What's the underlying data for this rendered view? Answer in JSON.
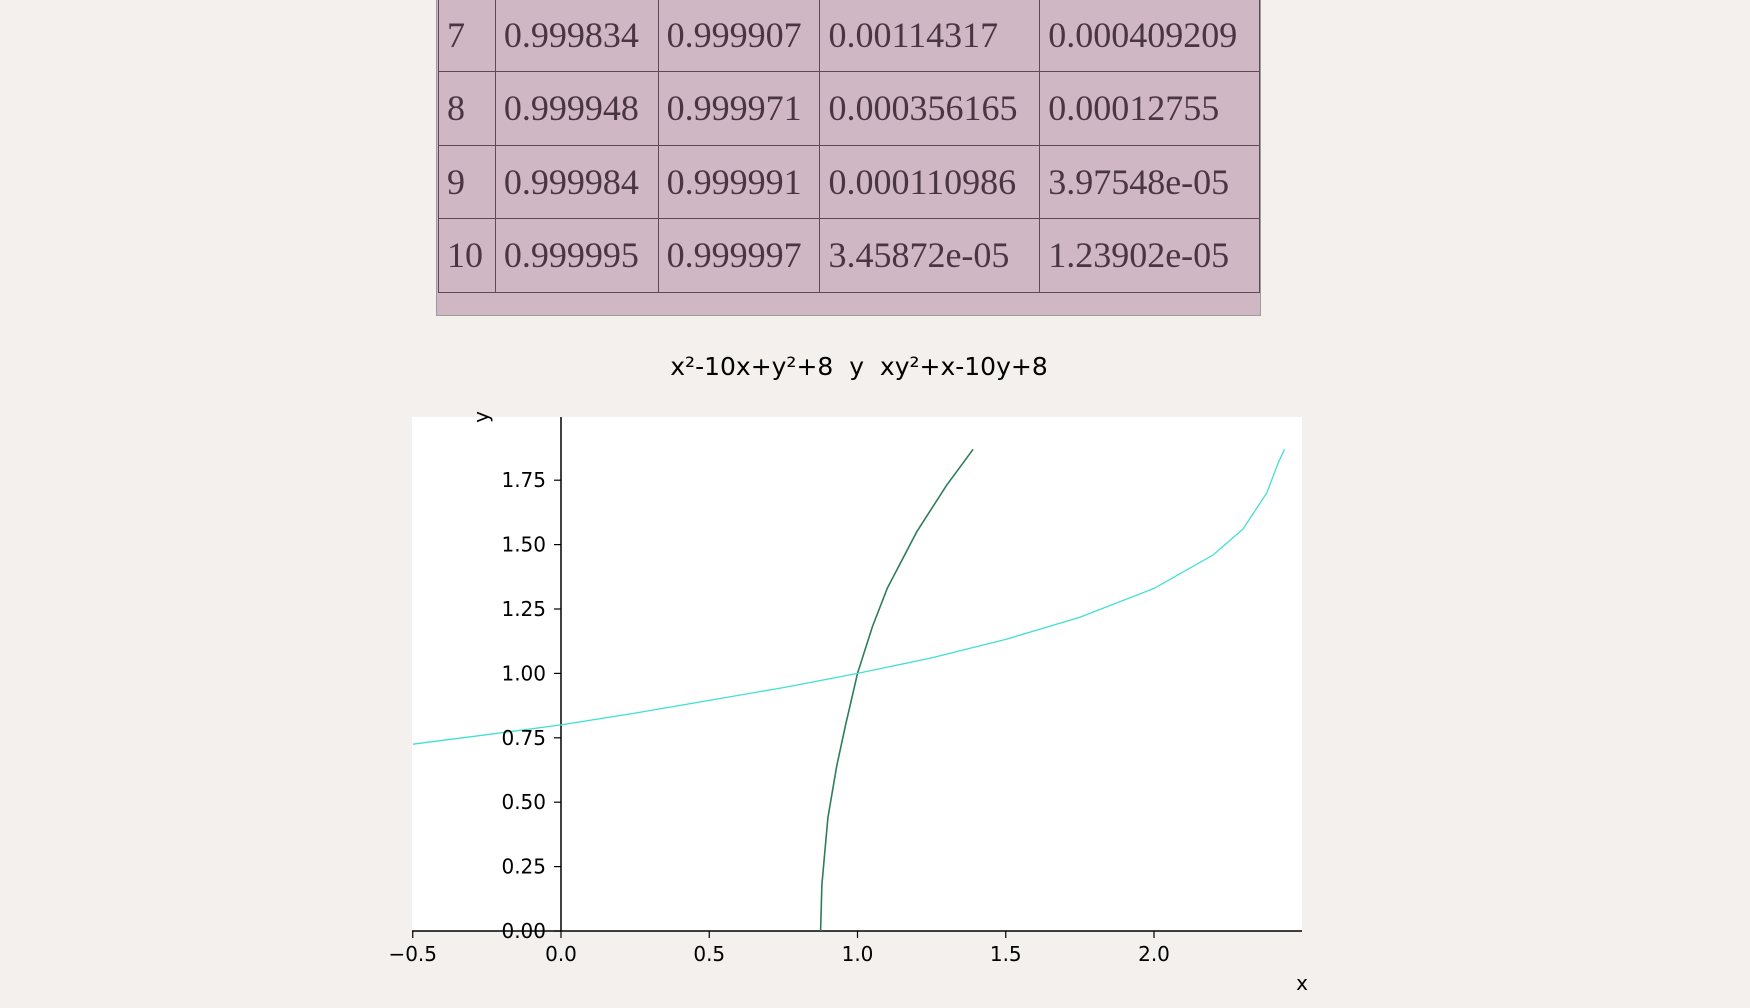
{
  "table": {
    "rows": [
      [
        "7",
        "0.999834",
        "0.999907",
        "0.00114317",
        "0.000409209"
      ],
      [
        "8",
        "0.999948",
        "0.999971",
        "0.000356165",
        "0.00012755"
      ],
      [
        "9",
        "0.999984",
        "0.999991",
        "0.000110986",
        "3.97548e-05"
      ],
      [
        "10",
        "0.999995",
        "0.999997",
        "3.45872e-05",
        "1.23902e-05"
      ]
    ]
  },
  "chart_data": {
    "type": "line",
    "title": "x²-10x+y²+8  y  xy²+x-10y+8",
    "xlabel": "x",
    "ylabel": "y",
    "xlim": [
      -0.5,
      2.5
    ],
    "ylim": [
      0,
      2
    ],
    "x_ticks": [
      "−0.5",
      "0.0",
      "0.5",
      "1.0",
      "1.5",
      "2.0"
    ],
    "y_ticks": [
      "0.00",
      "0.25",
      "0.50",
      "0.75",
      "1.00",
      "1.25",
      "1.50",
      "1.75"
    ],
    "series": [
      {
        "equation": "x²-10x+y²+8 = 0",
        "color": "#2e7d5b",
        "points": [
          [
            0.8754,
            0.0
          ],
          [
            0.88,
            0.18
          ],
          [
            0.9,
            0.44
          ],
          [
            0.93,
            0.64
          ],
          [
            0.96,
            0.8
          ],
          [
            1.0,
            1.0
          ],
          [
            1.05,
            1.18
          ],
          [
            1.1,
            1.33
          ],
          [
            1.2,
            1.55
          ],
          [
            1.3,
            1.73
          ],
          [
            1.39,
            1.87
          ]
        ]
      },
      {
        "equation": "xy²+x-10y+8 = 0",
        "color": "#40e0d0",
        "points": [
          [
            -0.5,
            0.725
          ],
          [
            -0.25,
            0.762
          ],
          [
            0.0,
            0.8
          ],
          [
            0.25,
            0.846
          ],
          [
            0.5,
            0.895
          ],
          [
            0.75,
            0.945
          ],
          [
            1.0,
            1.0
          ],
          [
            1.25,
            1.06
          ],
          [
            1.5,
            1.132
          ],
          [
            1.75,
            1.218
          ],
          [
            2.0,
            1.33
          ],
          [
            2.2,
            1.46
          ],
          [
            2.3,
            1.56
          ],
          [
            2.38,
            1.7
          ],
          [
            2.42,
            1.82
          ],
          [
            2.44,
            1.87
          ]
        ]
      }
    ],
    "grid": false
  }
}
